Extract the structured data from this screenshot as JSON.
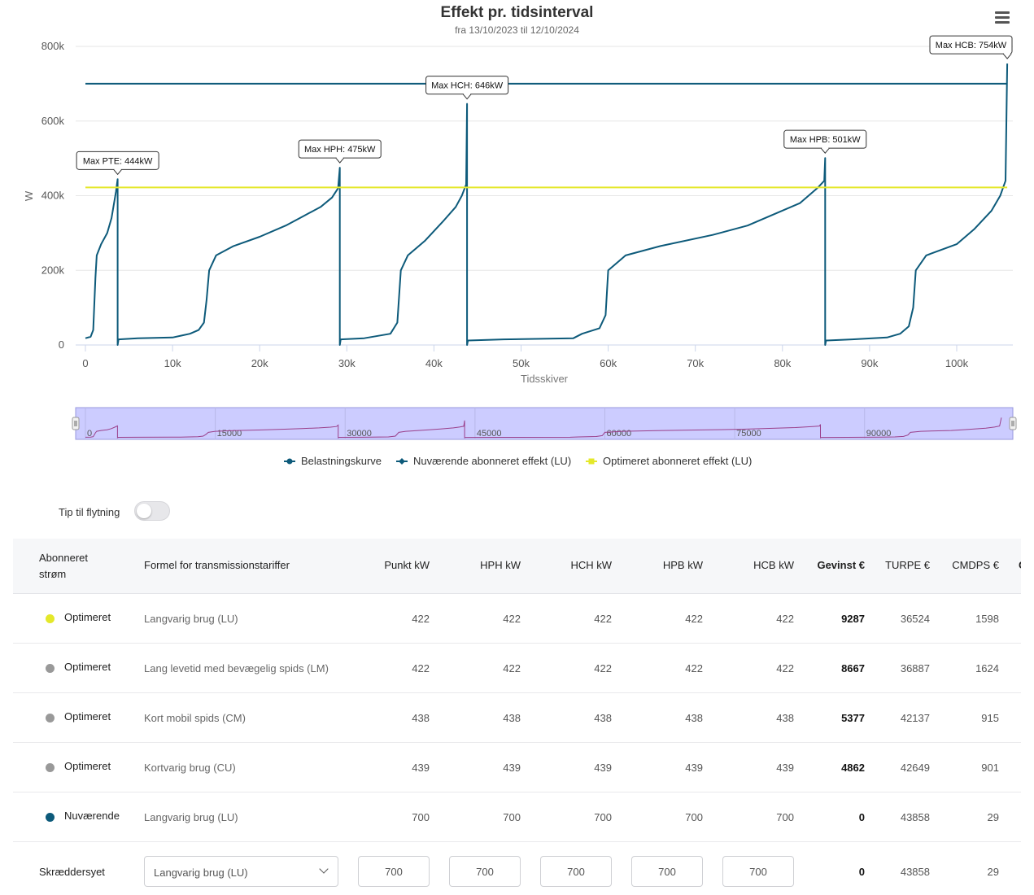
{
  "chart": {
    "title": "Effekt pr. tidsinterval",
    "subtitle": "fra 13/10/2023 til 12/10/2024",
    "menu_icon": "hamburger-menu-icon",
    "navigator_ticks": [
      "0",
      "15000",
      "30000",
      "45000",
      "60000",
      "75000",
      "90000"
    ]
  },
  "chart_data": {
    "type": "line",
    "title": "Effekt pr. tidsinterval",
    "subtitle": "fra 13/10/2023 til 12/10/2024",
    "xlabel": "Tidsskiver",
    "ylabel": "W",
    "xlim": [
      0,
      106000
    ],
    "ylim": [
      0,
      800
    ],
    "x_ticks": [
      "0",
      "10k",
      "20k",
      "30k",
      "40k",
      "50k",
      "60k",
      "70k",
      "80k",
      "90k",
      "100k"
    ],
    "y_ticks": [
      "0",
      "200k",
      "400k",
      "600k",
      "800k"
    ],
    "grid": true,
    "legend_position": "bottom",
    "series": [
      {
        "name": "Belastningskurve",
        "color": "#0d5a7a",
        "points": [
          [
            0,
            18
          ],
          [
            600,
            22
          ],
          [
            900,
            40
          ],
          [
            1150,
            180
          ],
          [
            1300,
            240
          ],
          [
            1800,
            270
          ],
          [
            2500,
            300
          ],
          [
            3000,
            340
          ],
          [
            3500,
            410
          ],
          [
            3700,
            444
          ],
          [
            3700,
            0
          ],
          [
            3800,
            15
          ],
          [
            6000,
            18
          ],
          [
            10000,
            20
          ],
          [
            11000,
            25
          ],
          [
            12000,
            30
          ],
          [
            13000,
            40
          ],
          [
            13600,
            60
          ],
          [
            13900,
            120
          ],
          [
            14200,
            200
          ],
          [
            15000,
            240
          ],
          [
            17000,
            265
          ],
          [
            20000,
            290
          ],
          [
            23000,
            320
          ],
          [
            25000,
            345
          ],
          [
            27000,
            370
          ],
          [
            28300,
            395
          ],
          [
            29000,
            420
          ],
          [
            29200,
            475
          ],
          [
            29200,
            0
          ],
          [
            29300,
            15
          ],
          [
            32000,
            18
          ],
          [
            35000,
            30
          ],
          [
            35800,
            60
          ],
          [
            36200,
            200
          ],
          [
            37000,
            240
          ],
          [
            39000,
            280
          ],
          [
            41000,
            330
          ],
          [
            42500,
            370
          ],
          [
            43200,
            400
          ],
          [
            43700,
            430
          ],
          [
            43800,
            646
          ],
          [
            43800,
            0
          ],
          [
            43900,
            12
          ],
          [
            48000,
            15
          ],
          [
            56000,
            18
          ],
          [
            57000,
            30
          ],
          [
            59000,
            45
          ],
          [
            59700,
            80
          ],
          [
            60000,
            200
          ],
          [
            62000,
            240
          ],
          [
            66000,
            265
          ],
          [
            72000,
            295
          ],
          [
            76000,
            320
          ],
          [
            79000,
            350
          ],
          [
            82000,
            380
          ],
          [
            84000,
            420
          ],
          [
            84800,
            440
          ],
          [
            84900,
            501
          ],
          [
            84900,
            0
          ],
          [
            85000,
            12
          ],
          [
            88000,
            15
          ],
          [
            92000,
            20
          ],
          [
            93500,
            30
          ],
          [
            94500,
            50
          ],
          [
            95000,
            100
          ],
          [
            95300,
            200
          ],
          [
            96500,
            240
          ],
          [
            100000,
            270
          ],
          [
            102000,
            310
          ],
          [
            104000,
            360
          ],
          [
            105000,
            400
          ],
          [
            105600,
            440
          ],
          [
            105800,
            754
          ]
        ]
      },
      {
        "name": "Nuværende abonneret effekt (LU)",
        "color": "#0d5a7a",
        "points": [
          [
            0,
            700
          ],
          [
            105800,
            700
          ]
        ]
      },
      {
        "name": "Optimeret abonneret effekt (LU)",
        "color": "#e4e82a",
        "points": [
          [
            0,
            422
          ],
          [
            105800,
            422
          ]
        ]
      }
    ],
    "annotations": [
      {
        "text": "Max PTE: 444kW",
        "x": 3700,
        "y": 444
      },
      {
        "text": "Max HPH: 475kW",
        "x": 29200,
        "y": 475
      },
      {
        "text": "Max HCH: 646kW",
        "x": 43800,
        "y": 646
      },
      {
        "text": "Max HPB: 501kW",
        "x": 84900,
        "y": 501
      },
      {
        "text": "Max HCB: 754kW",
        "x": 105800,
        "y": 754
      }
    ]
  },
  "toggle": {
    "label": "Tip til flytning",
    "on": false
  },
  "table": {
    "headers": {
      "subscribed_line1": "Abonneret",
      "subscribed_line2": "strøm",
      "formula": "Formel for transmissionstariffer",
      "punkt": "Punkt kW",
      "hph": "HPH kW",
      "hch": "HCH kW",
      "hpb": "HPB kW",
      "hcb": "HCB kW",
      "gevinst": "Gevinst €",
      "turpe": "TURPE €",
      "cmdps": "CMDPS €",
      "extra": "C"
    },
    "rows": [
      {
        "dot_color": "#e4e82a",
        "name": "Optimeret",
        "formula": "Langvarig brug (LU)",
        "punkt": "422",
        "hph": "422",
        "hch": "422",
        "hpb": "422",
        "hcb": "422",
        "gevinst": "9287",
        "turpe": "36524",
        "cmdps": "1598"
      },
      {
        "dot_color": "#999999",
        "name": "Optimeret",
        "formula": "Lang levetid med bevægelig spids (LM)",
        "punkt": "422",
        "hph": "422",
        "hch": "422",
        "hpb": "422",
        "hcb": "422",
        "gevinst": "8667",
        "turpe": "36887",
        "cmdps": "1624"
      },
      {
        "dot_color": "#999999",
        "name": "Optimeret",
        "formula": "Kort mobil spids (CM)",
        "punkt": "438",
        "hph": "438",
        "hch": "438",
        "hpb": "438",
        "hcb": "438",
        "gevinst": "5377",
        "turpe": "42137",
        "cmdps": "915"
      },
      {
        "dot_color": "#999999",
        "name": "Optimeret",
        "formula": "Kortvarig brug (CU)",
        "punkt": "439",
        "hph": "439",
        "hch": "439",
        "hpb": "439",
        "hcb": "439",
        "gevinst": "4862",
        "turpe": "42649",
        "cmdps": "901"
      },
      {
        "dot_color": "#0d5a7a",
        "name": "Nuværende",
        "formula": "Langvarig brug (LU)",
        "punkt": "700",
        "hph": "700",
        "hch": "700",
        "hpb": "700",
        "hcb": "700",
        "gevinst": "0",
        "turpe": "43858",
        "cmdps": "29"
      }
    ],
    "custom": {
      "name": "Skræddersyet",
      "formula_select": "Langvarig brug (LU)",
      "punkt": "700",
      "hph": "700",
      "hch": "700",
      "hpb": "700",
      "hcb": "700",
      "gevinst": "0",
      "turpe": "43858",
      "cmdps": "29"
    }
  }
}
